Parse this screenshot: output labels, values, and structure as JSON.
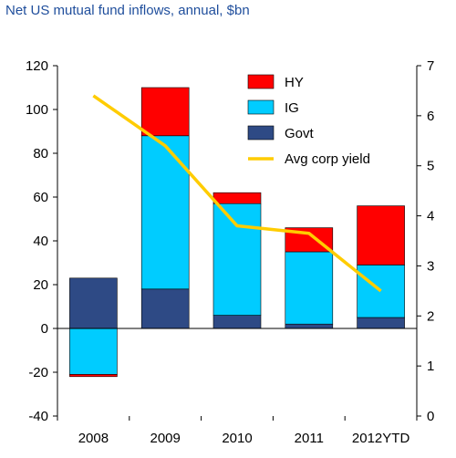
{
  "chart_data": {
    "type": "bar",
    "title": "Net US mutual fund inflows, annual, $bn",
    "categories": [
      "2008",
      "2009",
      "2010",
      "2011",
      "2012YTD"
    ],
    "stacking": "stacked (positive above zero, negative below)",
    "series": [
      {
        "name": "HY",
        "color": "#ff0000",
        "values": [
          -1,
          22,
          5,
          11,
          27
        ]
      },
      {
        "name": "IG",
        "color": "#00ccff",
        "values": [
          -21,
          70,
          51,
          33,
          24
        ]
      },
      {
        "name": "Govt",
        "color": "#2e4a85",
        "values": [
          23,
          18,
          6,
          2,
          5
        ]
      }
    ],
    "line_series": {
      "name": "Avg corp yield",
      "color": "#ffcc00",
      "axis": "right",
      "values": [
        6.4,
        5.4,
        3.8,
        3.65,
        2.5
      ]
    },
    "ylim": [
      -40,
      120
    ],
    "yticks": [
      "-40",
      "-20",
      "0",
      "20",
      "40",
      "60",
      "80",
      "100",
      "120"
    ],
    "y2lim": [
      0,
      7
    ],
    "y2ticks": [
      "0",
      "1",
      "2",
      "3",
      "4",
      "5",
      "6",
      "7"
    ],
    "grid": false,
    "legend": "top-center, inside plot"
  }
}
